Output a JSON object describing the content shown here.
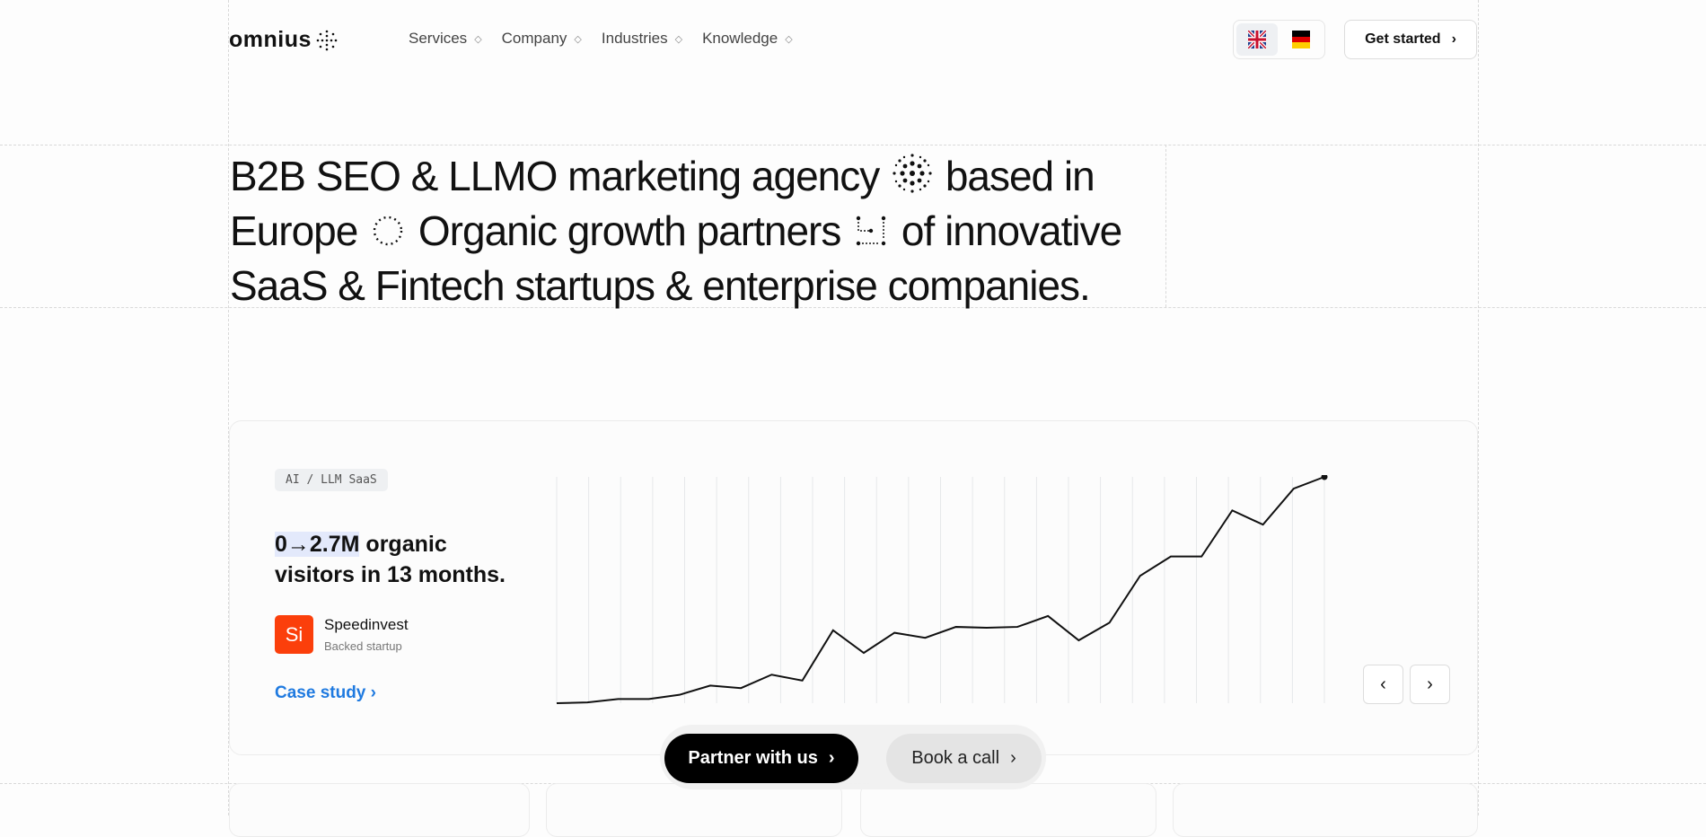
{
  "header": {
    "logo": "omnius",
    "nav": [
      {
        "label": "Services"
      },
      {
        "label": "Company"
      },
      {
        "label": "Industries"
      },
      {
        "label": "Knowledge"
      }
    ],
    "languages": [
      {
        "code": "EN",
        "active": true
      },
      {
        "code": "DE",
        "active": false
      }
    ],
    "cta_label": "Get started"
  },
  "hero": {
    "part1": "B2B SEO & LLMO marketing agency",
    "part2": "based in Europe",
    "part3": "Organic growth partners",
    "part4": "of innovative SaaS & Fintech startups & enterprise companies."
  },
  "case_card": {
    "tag": "AI / LLM SaaS",
    "stat_highlight": "0→2.7M",
    "stat_rest": " organic visitors in 13 months.",
    "company": "Speedinvest",
    "company_initials": "Si",
    "company_sub": "Backed startup",
    "case_link": "Case study",
    "brand_color": "#fb3f0b",
    "link_color": "#1f7ae0"
  },
  "chart_data": {
    "type": "line",
    "grid": "vertical",
    "ylim": [
      0,
      2.7
    ],
    "values": [
      0,
      0.01,
      0.05,
      0.05,
      0.1,
      0.21,
      0.18,
      0.34,
      0.27,
      0.87,
      0.6,
      0.84,
      0.78,
      0.91,
      0.9,
      0.91,
      1.04,
      0.75,
      0.96,
      1.52,
      1.75,
      1.75,
      2.3,
      2.13,
      2.56,
      2.7
    ]
  },
  "cta": {
    "partner_label": "Partner with us",
    "book_label": "Book a call"
  }
}
